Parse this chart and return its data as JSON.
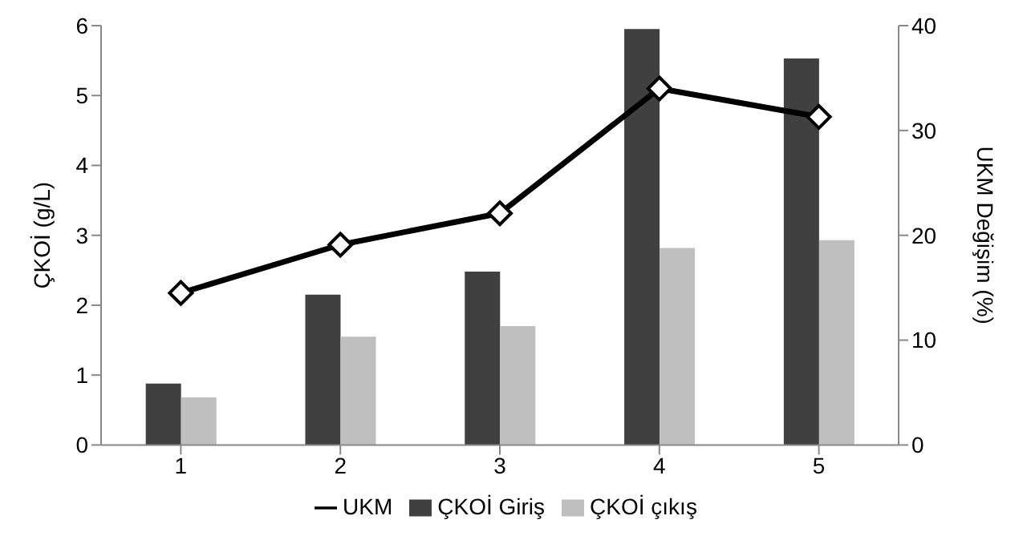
{
  "chart_data": {
    "type": "bar",
    "categories": [
      "1",
      "2",
      "3",
      "4",
      "5"
    ],
    "series": [
      {
        "name": "ÇKOİ Giriş",
        "color": "#404040",
        "values": [
          0.88,
          2.15,
          2.48,
          5.95,
          5.53
        ]
      },
      {
        "name": "ÇKOİ çıkış",
        "color": "#bfbfbf",
        "values": [
          0.68,
          1.55,
          1.7,
          2.82,
          2.93
        ]
      },
      {
        "name": "UKM",
        "type": "line",
        "axis": "y2",
        "color": "#000000",
        "values": [
          14.5,
          19.1,
          22.1,
          34.0,
          31.3
        ]
      }
    ],
    "ylabel": "ÇKOİ (g/L)",
    "y2label": "UKM Değişim  (%)",
    "ylim": [
      0,
      6
    ],
    "yticks": [
      0,
      1,
      2,
      3,
      4,
      5,
      6
    ],
    "y2lim": [
      0,
      40
    ],
    "y2ticks": [
      0,
      10,
      20,
      30,
      40
    ],
    "marker": "diamond",
    "legend": "bottom",
    "grid": false
  }
}
